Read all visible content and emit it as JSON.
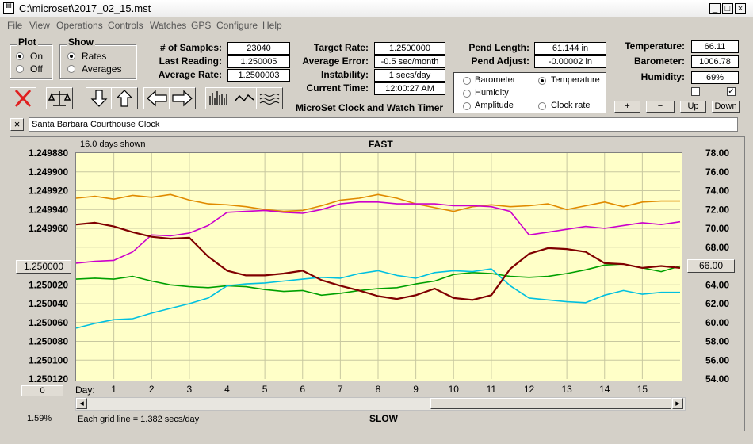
{
  "window": {
    "title": "C:\\microset\\2017_02_15.mst"
  },
  "menu": [
    "File",
    "View",
    "Operations",
    "Controls",
    "Watches",
    "GPS",
    "Configure",
    "Help"
  ],
  "plot_group": {
    "title": "Plot",
    "options": [
      "On",
      "Off"
    ],
    "selected": "On"
  },
  "show_group": {
    "title": "Show",
    "options": [
      "Rates",
      "Averages"
    ],
    "selected": "Rates"
  },
  "stats": {
    "samples_label": "# of Samples:",
    "samples": "23040",
    "last_label": "Last Reading:",
    "last": "1.250005",
    "avg_label": "Average Rate:",
    "avg": "1.2500003"
  },
  "rates": {
    "target_label": "Target Rate:",
    "target": "1.2500000",
    "avgerr_label": "Average Error:",
    "avgerr": "-0.5 sec/month",
    "instab_label": "Instability:",
    "instab": "1 secs/day",
    "time_label": "Current Time:",
    "time": "12:00:27 AM"
  },
  "pend": {
    "length_label": "Pend Length:",
    "length": "61.144 in",
    "adjust_label": "Pend Adjust:",
    "adjust": "-0.00002 in"
  },
  "env": {
    "temp_label": "Temperature:",
    "temp": "66.11",
    "baro_label": "Barometer:",
    "baro": "1006.78",
    "hum_label": "Humidity:",
    "hum": "69%"
  },
  "app_caption": "MicroSet Clock and Watch Timer",
  "series_select": [
    {
      "label": "Barometer",
      "color": "#e08a00",
      "selected": false
    },
    {
      "label": "Temperature",
      "color": "#00a000",
      "selected": true
    },
    {
      "label": "Humidity",
      "color": "#cc00cc",
      "selected": false
    },
    {
      "label": "Amplitude",
      "color": "#00c0e0",
      "selected": false
    },
    {
      "label": "Clock rate",
      "color": "#800000",
      "selected": false
    }
  ],
  "adjust_buttons": [
    "+",
    "−",
    "Up",
    "Down"
  ],
  "clock_name": "Santa Barbara Courthouse Clock",
  "chart_header": {
    "days_shown": "16.0 days shown",
    "top": "FAST",
    "bottom": "SLOW",
    "grid_note": "Each grid line = 1.382 secs/day",
    "left_pct": "1.59%",
    "left_button": "1.250000",
    "right_button": "66.00",
    "zero_button": "0",
    "day_label": "Day:"
  },
  "chart_data": {
    "type": "line",
    "x_label": "Day",
    "x": [
      0,
      0.5,
      1,
      1.5,
      2,
      2.5,
      3,
      3.5,
      4,
      4.5,
      5,
      5.5,
      6,
      6.5,
      7,
      7.5,
      8,
      8.5,
      9,
      9.5,
      10,
      10.5,
      11,
      11.5,
      12,
      12.5,
      13,
      13.5,
      14,
      14.5,
      15,
      15.5,
      16
    ],
    "x_ticks": [
      1,
      2,
      3,
      4,
      5,
      6,
      7,
      8,
      9,
      10,
      11,
      12,
      13,
      14,
      15
    ],
    "y_left": {
      "ticks": [
        "1.249880",
        "1.249900",
        "1.249920",
        "1.249940",
        "1.249960",
        "1.250000",
        "1.250020",
        "1.250040",
        "1.250060",
        "1.250080",
        "1.250100",
        "1.250120"
      ],
      "ylim": [
        1.25012,
        1.24988
      ]
    },
    "y_right": {
      "ticks": [
        "78.00",
        "76.00",
        "74.00",
        "72.00",
        "70.00",
        "68.00",
        "66.00",
        "64.00",
        "62.00",
        "60.00",
        "58.00",
        "56.00",
        "54.00"
      ],
      "ylim": [
        54,
        78
      ]
    },
    "series": [
      {
        "name": "Barometer",
        "color": "#e08a00",
        "values": [
          73.2,
          73.4,
          73.1,
          73.5,
          73.3,
          73.6,
          73.0,
          72.6,
          72.5,
          72.3,
          72.0,
          71.8,
          71.9,
          72.4,
          73.0,
          73.2,
          73.6,
          73.2,
          72.6,
          72.2,
          71.8,
          72.3,
          72.5,
          72.3,
          72.4,
          72.6,
          72.0,
          72.4,
          72.8,
          72.3,
          72.8,
          72.9,
          72.9
        ]
      },
      {
        "name": "Humidity",
        "color": "#cc00cc",
        "values": [
          66.3,
          66.5,
          66.6,
          67.5,
          69.3,
          69.2,
          69.5,
          70.3,
          71.7,
          71.8,
          71.9,
          71.7,
          71.6,
          72.0,
          72.6,
          72.8,
          72.8,
          72.6,
          72.6,
          72.6,
          72.4,
          72.4,
          72.3,
          71.8,
          69.3,
          69.6,
          69.9,
          70.2,
          70.0,
          70.3,
          70.6,
          70.4,
          70.7
        ]
      },
      {
        "name": "Temperature",
        "color": "#00a000",
        "values": [
          64.6,
          64.7,
          64.6,
          64.9,
          64.4,
          64.0,
          63.8,
          63.7,
          63.9,
          63.8,
          63.5,
          63.3,
          63.4,
          62.9,
          63.1,
          63.4,
          63.6,
          63.7,
          64.1,
          64.4,
          65.1,
          65.3,
          65.2,
          64.9,
          64.8,
          64.9,
          65.2,
          65.6,
          66.1,
          66.2,
          65.8,
          65.4,
          66.0
        ]
      },
      {
        "name": "Amplitude",
        "color": "#00c0e0",
        "values": [
          59.4,
          59.9,
          60.3,
          60.4,
          61.0,
          61.5,
          62.0,
          62.6,
          63.9,
          64.1,
          64.2,
          64.4,
          64.6,
          64.8,
          64.7,
          65.2,
          65.5,
          65.0,
          64.7,
          65.3,
          65.5,
          65.4,
          65.7,
          63.9,
          62.6,
          62.4,
          62.2,
          62.1,
          62.9,
          63.4,
          63.0,
          63.2,
          63.2
        ]
      },
      {
        "name": "Clock rate",
        "color": "#800000",
        "values": [
          70.4,
          70.6,
          70.2,
          69.6,
          69.1,
          68.9,
          69.0,
          67.0,
          65.5,
          65.0,
          65.0,
          65.2,
          65.5,
          64.5,
          63.9,
          63.4,
          62.8,
          62.5,
          62.9,
          63.6,
          62.6,
          62.4,
          62.9,
          65.7,
          67.3,
          67.9,
          67.8,
          67.5,
          66.3,
          66.2,
          65.8,
          66.0,
          65.8
        ]
      }
    ]
  }
}
